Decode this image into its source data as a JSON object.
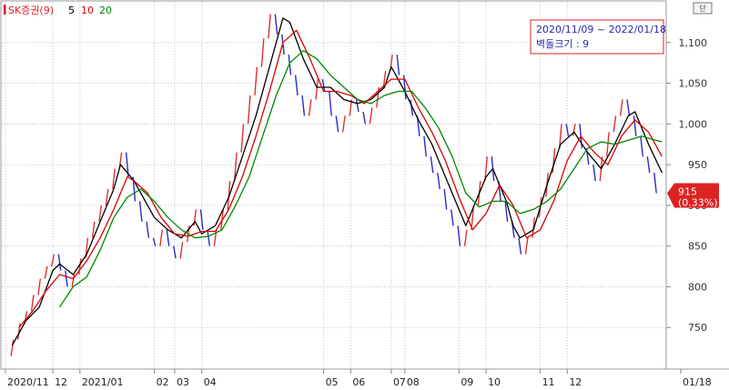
{
  "chart_data": {
    "type": "line",
    "chart_kind": "three-line-break",
    "ylim": [
      700,
      1150
    ],
    "y_ticks": [
      750,
      800,
      850,
      900,
      950,
      1000,
      1050,
      1100
    ],
    "y_tick_labels": [
      "750",
      "800",
      "850",
      "900",
      "950",
      "1,000",
      "1,050",
      "1,100"
    ],
    "x_tick_labels": [
      {
        "label": "2020/11",
        "i": 0
      },
      {
        "label": "12",
        "i": 7
      },
      {
        "label": "2021/01",
        "i": 11
      },
      {
        "label": "02",
        "i": 22
      },
      {
        "label": "03",
        "i": 25
      },
      {
        "label": "04",
        "i": 29
      },
      {
        "label": "05",
        "i": 47
      },
      {
        "label": "06",
        "i": 51
      },
      {
        "label": "07",
        "i": 57
      },
      {
        "label": "08",
        "i": 59
      },
      {
        "label": "09",
        "i": 67
      },
      {
        "label": "10",
        "i": 71
      },
      {
        "label": "11",
        "i": 79
      },
      {
        "label": "12",
        "i": 83
      },
      {
        "label": "01/18",
        "i": 94
      }
    ],
    "grid": true,
    "legend": {
      "position": "top-left",
      "title": "SK증권(9)",
      "entries": [
        {
          "label": "5",
          "color": "#000000"
        },
        {
          "label": "10",
          "color": "#dd0000"
        },
        {
          "label": "20",
          "color": "#008800"
        }
      ]
    },
    "info_box": {
      "period": "2020/11/09 ~ 2022/01/18",
      "brick_label": "벽돌크기 : 9"
    },
    "unit_label": "단",
    "last_price": {
      "value": 915,
      "label": "915",
      "change": "(0.33%)",
      "color": "#dd2222"
    },
    "bricks": [
      715,
      735,
      755,
      770,
      790,
      810,
      825,
      840,
      820,
      800,
      815,
      835,
      860,
      880,
      900,
      920,
      945,
      965,
      935,
      905,
      880,
      860,
      850,
      870,
      850,
      835,
      855,
      875,
      895,
      870,
      850,
      870,
      895,
      930,
      965,
      1000,
      1035,
      1070,
      1105,
      1135,
      1110,
      1085,
      1060,
      1035,
      1010,
      1030,
      1055,
      1040,
      1010,
      990,
      1010,
      1030,
      1015,
      1000,
      1020,
      1045,
      1065,
      1085,
      1060,
      1030,
      1010,
      985,
      960,
      940,
      920,
      895,
      875,
      850,
      870,
      900,
      930,
      960,
      930,
      905,
      880,
      860,
      840,
      860,
      885,
      910,
      940,
      970,
      1000,
      985,
      1000,
      970,
      950,
      930,
      960,
      990,
      1010,
      1030,
      1010,
      985,
      960,
      940,
      915
    ],
    "series": [
      {
        "name": "5",
        "color": "#000000",
        "points": [
          [
            1,
            728
          ],
          [
            3,
            758
          ],
          [
            5,
            775
          ],
          [
            7,
            820
          ],
          [
            8,
            828
          ],
          [
            10,
            815
          ],
          [
            12,
            840
          ],
          [
            14,
            880
          ],
          [
            16,
            920
          ],
          [
            17,
            950
          ],
          [
            19,
            930
          ],
          [
            21,
            900
          ],
          [
            22,
            885
          ],
          [
            24,
            870
          ],
          [
            26,
            860
          ],
          [
            28,
            880
          ],
          [
            29,
            865
          ],
          [
            31,
            875
          ],
          [
            33,
            910
          ],
          [
            35,
            960
          ],
          [
            37,
            1010
          ],
          [
            39,
            1070
          ],
          [
            41,
            1130
          ],
          [
            42,
            1125
          ],
          [
            44,
            1080
          ],
          [
            46,
            1045
          ],
          [
            48,
            1045
          ],
          [
            50,
            1030
          ],
          [
            52,
            1025
          ],
          [
            54,
            1030
          ],
          [
            56,
            1045
          ],
          [
            57,
            1070
          ],
          [
            59,
            1040
          ],
          [
            61,
            1005
          ],
          [
            63,
            975
          ],
          [
            65,
            935
          ],
          [
            67,
            895
          ],
          [
            68,
            875
          ],
          [
            69,
            895
          ],
          [
            71,
            935
          ],
          [
            72,
            945
          ],
          [
            74,
            905
          ],
          [
            75,
            875
          ],
          [
            76,
            860
          ],
          [
            78,
            870
          ],
          [
            80,
            925
          ],
          [
            82,
            975
          ],
          [
            84,
            990
          ],
          [
            86,
            965
          ],
          [
            88,
            945
          ],
          [
            90,
            975
          ],
          [
            92,
            1010
          ],
          [
            93,
            1015
          ],
          [
            95,
            975
          ],
          [
            97,
            940
          ]
        ]
      },
      {
        "name": "10",
        "color": "#dd0000",
        "points": [
          [
            2,
            750
          ],
          [
            4,
            770
          ],
          [
            6,
            795
          ],
          [
            8,
            815
          ],
          [
            10,
            810
          ],
          [
            12,
            832
          ],
          [
            14,
            860
          ],
          [
            16,
            895
          ],
          [
            18,
            935
          ],
          [
            19,
            930
          ],
          [
            21,
            915
          ],
          [
            23,
            885
          ],
          [
            25,
            865
          ],
          [
            27,
            862
          ],
          [
            29,
            868
          ],
          [
            31,
            868
          ],
          [
            33,
            895
          ],
          [
            35,
            935
          ],
          [
            37,
            985
          ],
          [
            39,
            1040
          ],
          [
            41,
            1100
          ],
          [
            43,
            1115
          ],
          [
            45,
            1080
          ],
          [
            47,
            1040
          ],
          [
            49,
            1040
          ],
          [
            51,
            1035
          ],
          [
            53,
            1025
          ],
          [
            55,
            1040
          ],
          [
            57,
            1055
          ],
          [
            59,
            1055
          ],
          [
            61,
            1020
          ],
          [
            63,
            990
          ],
          [
            65,
            955
          ],
          [
            67,
            910
          ],
          [
            69,
            870
          ],
          [
            71,
            890
          ],
          [
            73,
            925
          ],
          [
            75,
            900
          ],
          [
            77,
            860
          ],
          [
            79,
            870
          ],
          [
            81,
            905
          ],
          [
            83,
            955
          ],
          [
            85,
            985
          ],
          [
            87,
            965
          ],
          [
            89,
            950
          ],
          [
            91,
            985
          ],
          [
            93,
            1005
          ],
          [
            95,
            990
          ],
          [
            97,
            960
          ]
        ]
      },
      {
        "name": "20",
        "color": "#008800",
        "points": [
          [
            8,
            775
          ],
          [
            10,
            800
          ],
          [
            12,
            812
          ],
          [
            14,
            845
          ],
          [
            16,
            885
          ],
          [
            18,
            910
          ],
          [
            20,
            920
          ],
          [
            22,
            905
          ],
          [
            24,
            885
          ],
          [
            26,
            870
          ],
          [
            28,
            860
          ],
          [
            30,
            862
          ],
          [
            32,
            870
          ],
          [
            34,
            900
          ],
          [
            36,
            935
          ],
          [
            38,
            985
          ],
          [
            40,
            1035
          ],
          [
            42,
            1075
          ],
          [
            44,
            1090
          ],
          [
            46,
            1080
          ],
          [
            48,
            1060
          ],
          [
            50,
            1045
          ],
          [
            52,
            1030
          ],
          [
            54,
            1025
          ],
          [
            56,
            1035
          ],
          [
            58,
            1040
          ],
          [
            60,
            1040
          ],
          [
            62,
            1020
          ],
          [
            64,
            995
          ],
          [
            66,
            960
          ],
          [
            68,
            915
          ],
          [
            70,
            898
          ],
          [
            72,
            905
          ],
          [
            74,
            905
          ],
          [
            76,
            890
          ],
          [
            78,
            895
          ],
          [
            80,
            905
          ],
          [
            82,
            920
          ],
          [
            84,
            945
          ],
          [
            86,
            970
          ],
          [
            88,
            978
          ],
          [
            90,
            975
          ],
          [
            92,
            980
          ],
          [
            94,
            985
          ],
          [
            96,
            980
          ],
          [
            97,
            978
          ]
        ]
      }
    ]
  }
}
